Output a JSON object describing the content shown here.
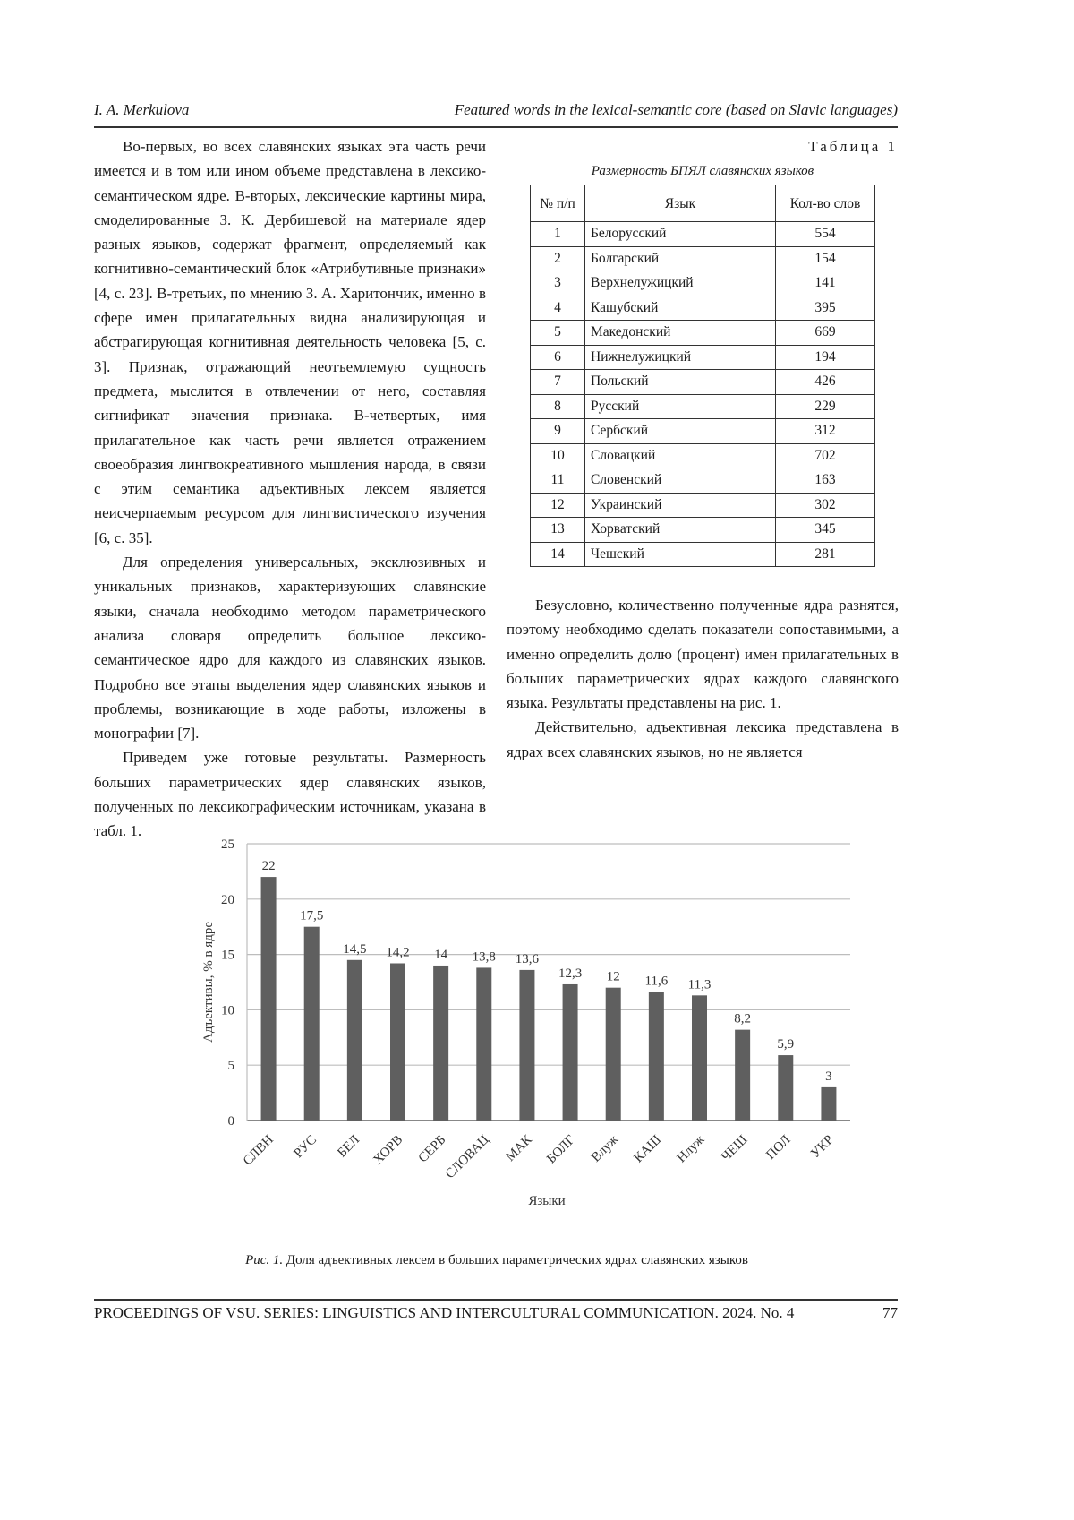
{
  "header": {
    "author": "I. A. Merkulova",
    "title": "Featured words in the lexical-semantic core (based on Slavic languages)"
  },
  "left_column": [
    "Во-первых, во всех славянских языках эта часть речи имеется и в том или ином объеме представлена в лексико-семантическом ядре. В-вторых, лексические картины мира, смоделированные З. К. Дербишевой на материале ядер разных языков, содержат фрагмент, определяемый как когнитивно-семантический блок «Атрибутивные признаки» [4, с. 23]. В-третьих, по мнению З. А. Харитончик, именно в сфере имен прилагательных видна анализирующая и абстрагирующая когнитивная деятельность человека [5, с. 3]. Признак, отражающий неотъемлемую сущность предмета, мыслится в отвлечении от него, составляя сигнификат значения признака. В-четвертых, имя прилагательное как часть речи является отражением своеобразия лингвокреативного мышления народа, в связи с этим семантика адъективных лексем является неисчерпаемым ресурсом для лингвистического изучения [6, с. 35].",
    "Для определения универсальных, эксклюзивных и уникальных признаков, характеризующих славянские языки, сначала необходимо методом параметрического анализа словаря определить большое лексико-семантическое ядро для каждого из славянских языков. Подробно все этапы выделения ядер славянских языков и проблемы, возникающие в ходе работы, изложены в монографии [7].",
    "Приведем уже готовые результаты. Размерность больших параметрических ядер славянских языков, полученных по лексикографическим источникам, указана в табл. 1."
  ],
  "table": {
    "label": "Таблица 1",
    "caption": "Размерность БПЯЛ славянских языков",
    "headers": [
      "№ п/п",
      "Язык",
      "Кол-во слов"
    ],
    "rows": [
      [
        "1",
        "Белорусский",
        "554"
      ],
      [
        "2",
        "Болгарский",
        "154"
      ],
      [
        "3",
        "Верхнелужицкий",
        "141"
      ],
      [
        "4",
        "Кашубский",
        "395"
      ],
      [
        "5",
        "Македонский",
        "669"
      ],
      [
        "6",
        "Нижнелужицкий",
        "194"
      ],
      [
        "7",
        "Польский",
        "426"
      ],
      [
        "8",
        "Русский",
        "229"
      ],
      [
        "9",
        "Сербский",
        "312"
      ],
      [
        "10",
        "Словацкий",
        "702"
      ],
      [
        "11",
        "Словенский",
        "163"
      ],
      [
        "12",
        "Украинский",
        "302"
      ],
      [
        "13",
        "Хорватский",
        "345"
      ],
      [
        "14",
        "Чешский",
        "281"
      ]
    ]
  },
  "right_column": [
    "Безусловно, количественно полученные ядра разнятся, поэтому необходимо сделать показатели сопоставимыми, а именно определить долю (процент) имен прилагательных в больших параметрических ядрах каждого славянского языка. Результаты представлены на рис. 1.",
    "Действительно, адъективная лексика представлена в ядрах всех славянских языков, но не является"
  ],
  "chart_data": {
    "type": "bar",
    "categories": [
      "СЛВН",
      "РУС",
      "БЕЛ",
      "ХОРВ",
      "СЕРБ",
      "СЛОВАЦ",
      "МАК",
      "БОЛГ",
      "Влуж",
      "КАШ",
      "Нлуж",
      "ЧЕШ",
      "ПОЛ",
      "УКР"
    ],
    "values": [
      22,
      17.5,
      14.5,
      14.2,
      14,
      13.8,
      13.6,
      12.3,
      12,
      11.6,
      11.3,
      8.2,
      5.9,
      3
    ],
    "data_labels": [
      "22",
      "17,5",
      "14,5",
      "14,2",
      "14",
      "13,8",
      "13,6",
      "12,3",
      "12",
      "11,6",
      "11,3",
      "8,2",
      "5,9",
      "3"
    ],
    "ylabel": "Адъективы, % в ядре",
    "xlabel": "Языки",
    "ylim": [
      0,
      25
    ],
    "yticks": [
      0,
      5,
      10,
      15,
      20,
      25
    ],
    "grid": true,
    "bar_color": "#5f5f5f"
  },
  "figure_caption": {
    "prefix": "Рис. 1.",
    "text": " Доля адъективных лексем в больших параметрических ядрах славянских языков"
  },
  "footer": {
    "journal": "PROCEEDINGS OF VSU. SERIES: LINGUISTICS AND INTERCULTURAL COMMUNICATION. 2024. No. 4",
    "page": "77"
  }
}
